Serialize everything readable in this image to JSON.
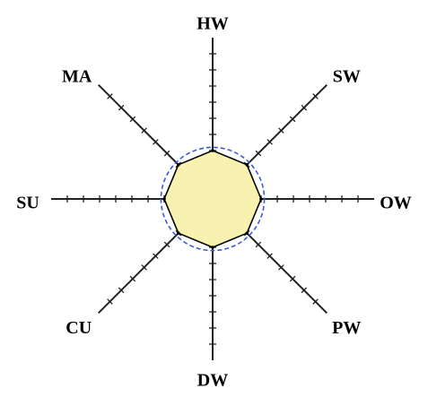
{
  "chart_data": {
    "type": "radar",
    "axes": [
      "HW",
      "SW",
      "OW",
      "PW",
      "DW",
      "CU",
      "SU",
      "MA"
    ],
    "values": [
      0.3,
      0.3,
      0.3,
      0.3,
      0.3,
      0.3,
      0.3,
      0.3
    ],
    "reference_circle": 0.32,
    "range": [
      0,
      1
    ],
    "tick_count": 10,
    "fill_color": "#f7f2b0",
    "stroke_color": "#000000",
    "reference_color": "#3d5bd9",
    "axis_color": "#222222"
  }
}
